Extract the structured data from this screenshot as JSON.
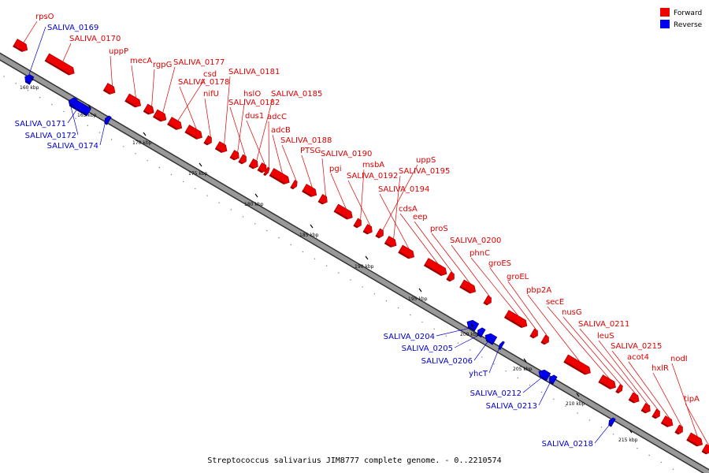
{
  "caption": "Streptococcus salivarius JIM8777 complete genome. - 0..2210574",
  "legend": [
    {
      "label": "Forward",
      "color": "#ee0000"
    },
    {
      "label": "Reverse",
      "color": "#0000ee"
    }
  ],
  "colors": {
    "forward": "#ee0000",
    "forward_dark": "#990000",
    "reverse": "#0000ee",
    "reverse_dark": "#000088",
    "backbone": "#999999",
    "backbone_edge": "#333333"
  },
  "ticks": [
    "160 kbp",
    "165 kbp",
    "170 kbp",
    "175 kbp",
    "180 kbp",
    "185 kbp",
    "190 kbp",
    "195 kbp",
    "200 kbp",
    "205 kbp",
    "210 kbp",
    "215 kbp"
  ],
  "genes_forward": [
    "rpsO",
    "SALIVA_0170",
    "uppP",
    "mecA",
    "rgpG",
    "SALIVA_0177",
    "csd",
    "SALIVA_0178",
    "nifU",
    "SALIVA_0181",
    "hslO",
    "SALIVA_0182",
    "SALIVA_0185",
    "dus1",
    "adcC",
    "adcB",
    "SALIVA_0188",
    "PTSG",
    "SALIVA_0190",
    "pgi",
    "msbA",
    "SALIVA_0192",
    "uppS",
    "SALIVA_0195",
    "SALIVA_0194",
    "cdsA",
    "eep",
    "proS",
    "SALIVA_0200",
    "phnC",
    "groES",
    "groEL",
    "pbp2A",
    "secE",
    "nusG",
    "SALIVA_0211",
    "leuS",
    "SALIVA_0215",
    "acot4",
    "hxlR",
    "nodI",
    "tipA"
  ],
  "genes_reverse": [
    "SALIVA_0169",
    "SALIVA_0171",
    "SALIVA_0172",
    "SALIVA_0174",
    "SALIVA_0204",
    "SALIVA_0205",
    "SALIVA_0206",
    "yhcT",
    "SALIVA_0212",
    "SALIVA_0213",
    "SALIVA_0218"
  ]
}
